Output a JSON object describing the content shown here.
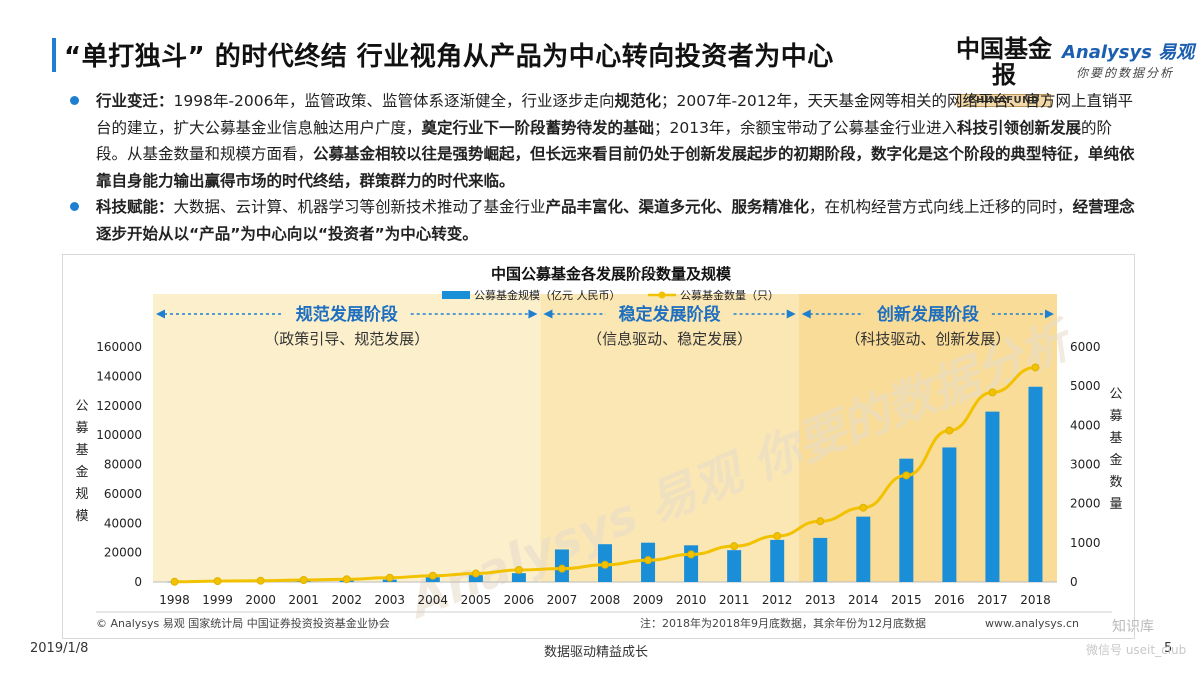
{
  "header": {
    "title": "“单打独斗” 的时代终结 行业视角从产品为中心转向投资者为中心",
    "logo_cn": "中国基金报",
    "logo_en": "CHINAFUND",
    "brand_name": "Analysys 易观",
    "brand_slogan": "你要的数据分析"
  },
  "bullets": [
    {
      "segments": [
        {
          "t": "行业变迁：",
          "b": true
        },
        {
          "t": "1998年-2006年，监管政策、监管体系逐渐健全，行业逐步走向",
          "b": false
        },
        {
          "t": "规范化",
          "b": true
        },
        {
          "t": "；2007年-2012年，天天基金网等相关的网络平台、官方网上直销平台的建立，扩大公募基金业信息触达用户广度，",
          "b": false
        },
        {
          "t": "奠定行业下一阶段蓄势待发的基础",
          "b": true
        },
        {
          "t": "；2013年，余额宝带动了公募基金行业进入",
          "b": false
        },
        {
          "t": "科技引领创新发展",
          "b": true
        },
        {
          "t": "的阶段。从基金数量和规模方面看，",
          "b": false
        },
        {
          "t": "公募基金相较以往是强势崛起，但长远来看目前仍处于创新发展起步的初期阶段，数字化是这个阶段的典型特征，单纯依靠自身能力输出赢得市场的时代终结，群策群力的时代来临。",
          "b": true
        }
      ]
    },
    {
      "segments": [
        {
          "t": "科技赋能：",
          "b": true
        },
        {
          "t": "大数据、云计算、机器学习等创新技术推动了基金行业",
          "b": false
        },
        {
          "t": "产品丰富化、渠道多元化、服务精准化",
          "b": true
        },
        {
          "t": "，在机构经营方式向线上迁移的同时，",
          "b": false
        },
        {
          "t": "经营理念逐步开始从以“产品”为中心向以“投资者”为中心转变。",
          "b": true
        }
      ]
    }
  ],
  "chart_data": {
    "type": "bar+line",
    "title": "中国公募基金各发展阶段数量及规模",
    "categories": [
      "1998",
      "1999",
      "2000",
      "2001",
      "2002",
      "2003",
      "2004",
      "2005",
      "2006",
      "2007",
      "2008",
      "2009",
      "2010",
      "2011",
      "2012",
      "2013",
      "2014",
      "2015",
      "2016",
      "2017",
      "2018"
    ],
    "series": [
      {
        "name": "公募基金规模（亿元 人民币）",
        "type": "bar",
        "axis": "left",
        "color": "#1a8fd8",
        "values": [
          104,
          562,
          846,
          818,
          1330,
          1616,
          3246,
          4691,
          6020,
          22157,
          25741,
          26767,
          24980,
          21680,
          28661,
          30020,
          44500,
          83972,
          91593,
          115997,
          132934
        ]
      },
      {
        "name": "公募基金数量（只）",
        "type": "line",
        "axis": "right",
        "color": "#f2c200",
        "values": [
          5,
          23,
          33,
          51,
          71,
          110,
          161,
          218,
          307,
          341,
          439,
          557,
          704,
          915,
          1173,
          1552,
          1897,
          2722,
          3867,
          4841,
          5478
        ]
      }
    ],
    "left_axis": {
      "label": "公募基金规模",
      "ylim": [
        0,
        160000
      ],
      "ticks": [
        "0",
        "20000",
        "40000",
        "60000",
        "80000",
        "100000",
        "120000",
        "140000",
        "160000"
      ]
    },
    "right_axis": {
      "label": "公募基金数量",
      "ylim": [
        0,
        6000
      ],
      "ticks": [
        "0",
        "1000",
        "2000",
        "3000",
        "4000",
        "5000",
        "6000"
      ]
    },
    "stages": [
      {
        "name": "规范发展阶段",
        "desc": "（政策引导、规范发展）",
        "from": "1998",
        "to": "2006"
      },
      {
        "name": "稳定发展阶段",
        "desc": "（信息驱动、稳定发展）",
        "from": "2007",
        "to": "2012"
      },
      {
        "name": "创新发展阶段",
        "desc": "（科技驱动、创新发展）",
        "from": "2013",
        "to": "2018"
      }
    ],
    "source": "© Analysys 易观 国家统计局 中国证券投资投资基金业协会",
    "note": "注：2018年为2018年9月底数据，其余年份为12月底数据",
    "website": "www.analysys.cn",
    "watermark": "Analysys 易观 你要的数据分析"
  },
  "footer": {
    "date": "2019/1/8",
    "slogan": "数据驱动精益成长",
    "page": "5",
    "watermark_site": "知识库",
    "watermark_sub": "微信号 useit_club"
  },
  "colors": {
    "accent": "#1e7fd0",
    "bar": "#1a8fd8",
    "line": "#f2c200",
    "stage_bg": "#fdf1cf"
  }
}
